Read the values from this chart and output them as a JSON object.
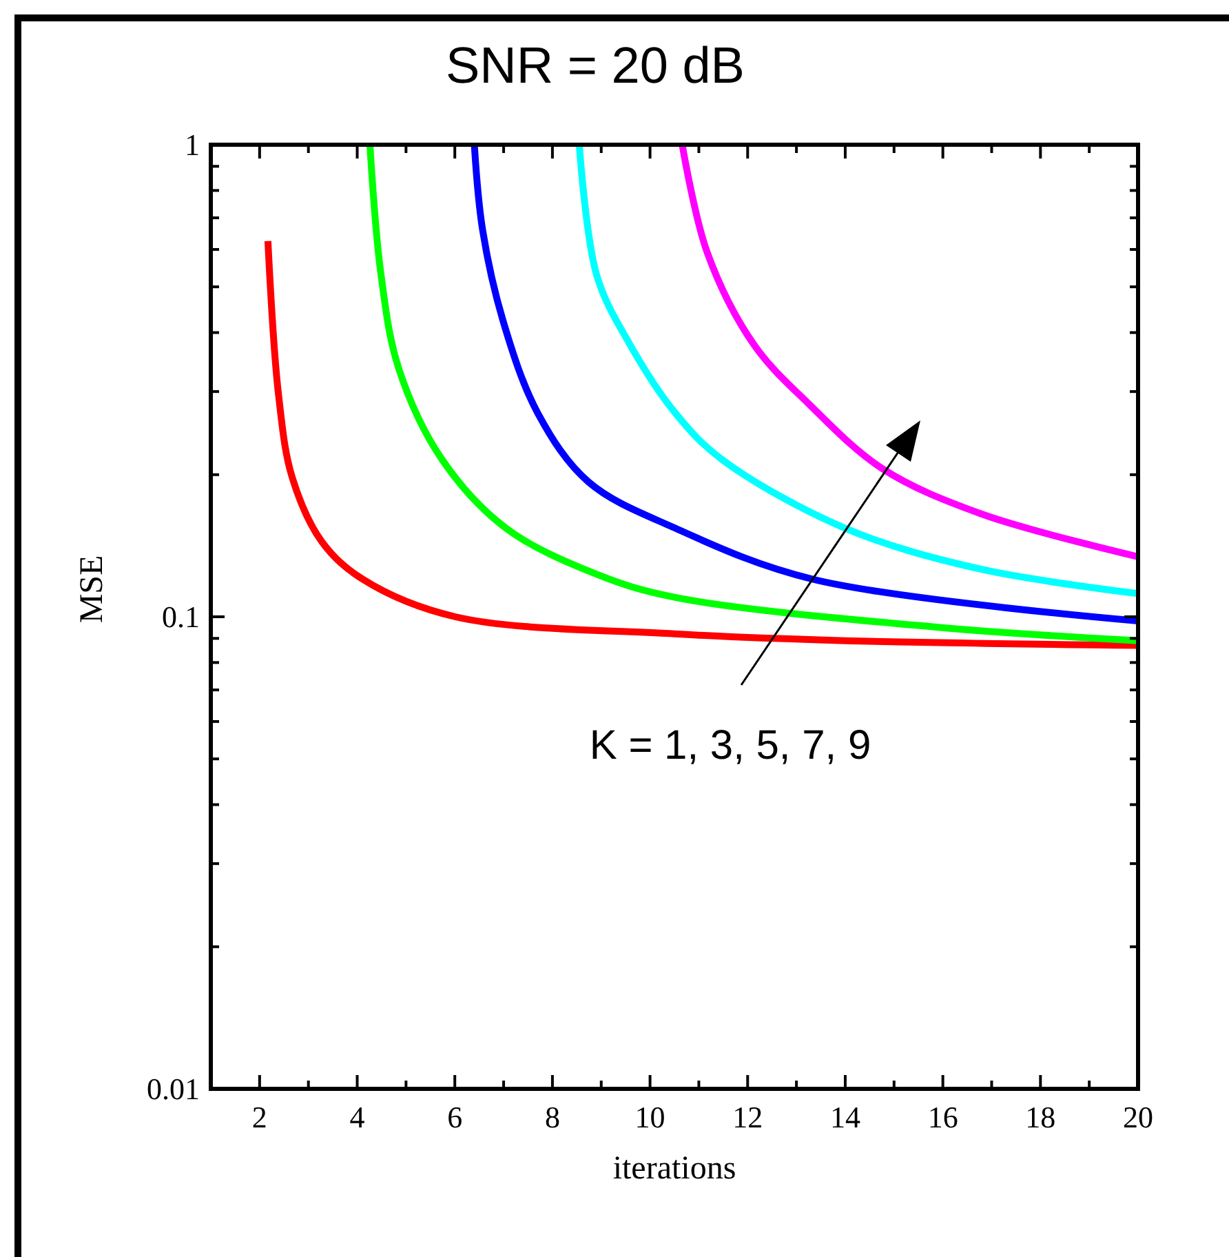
{
  "chart_data": {
    "type": "line",
    "title": "SNR = 20 dB",
    "xlabel": "iterations",
    "ylabel": "MSE",
    "log": "y",
    "grid": false,
    "xlim": [
      1,
      20
    ],
    "xticks": [
      2,
      {
        "value": 3,
        "label": null
      },
      4,
      {
        "value": 5,
        "label": null
      },
      6,
      {
        "value": 7,
        "label": null
      },
      8,
      {
        "value": 9,
        "label": null
      },
      10,
      {
        "value": 11,
        "label": null
      },
      12,
      {
        "value": 13,
        "label": null
      },
      14,
      {
        "value": 15,
        "label": null
      },
      16,
      {
        "value": 17,
        "label": null
      },
      18,
      {
        "value": 19,
        "label": null
      },
      20
    ],
    "ylim": [
      0.01,
      1
    ],
    "yticks": [
      0.01,
      {
        "value": 0.02,
        "label": null
      },
      {
        "value": 0.03,
        "label": null
      },
      {
        "value": 0.04,
        "label": null
      },
      {
        "value": 0.05,
        "label": null
      },
      {
        "value": 0.06,
        "label": null
      },
      {
        "value": 0.07,
        "label": null
      },
      {
        "value": 0.08,
        "label": null
      },
      {
        "value": 0.09,
        "label": null
      },
      0.1,
      {
        "value": 0.2,
        "label": null
      },
      {
        "value": 0.3,
        "label": null
      },
      {
        "value": 0.4,
        "label": null
      },
      {
        "value": 0.5,
        "label": null
      },
      {
        "value": 0.6,
        "label": null
      },
      {
        "value": 0.7,
        "label": null
      },
      {
        "value": 0.8,
        "label": null
      },
      {
        "value": 0.9,
        "label": null
      },
      1
    ],
    "series": [
      {
        "color": "#ff0000",
        "x": [
          2.17,
          2.39,
          2.67,
          3.28,
          4.12,
          6.01,
          10.5,
          14,
          20
        ],
        "values": [
          0.625,
          0.294,
          0.197,
          0.144,
          0.12,
          0.1,
          0.092,
          0.089,
          0.087
        ]
      },
      {
        "color": "#00ff00",
        "x": [
          4.26,
          4.49,
          4.85,
          5.73,
          7.05,
          8.91,
          10.5,
          15.9,
          20
        ],
        "values": [
          1,
          0.528,
          0.336,
          0.216,
          0.154,
          0.123,
          0.11,
          0.095,
          0.089
        ]
      },
      {
        "color": "#0000ff",
        "x": [
          6.4,
          6.57,
          6.99,
          7.7,
          8.74,
          10.52,
          13.35,
          20
        ],
        "values": [
          1,
          0.659,
          0.423,
          0.27,
          0.193,
          0.154,
          0.12,
          0.098
        ]
      },
      {
        "color": "#00ffff",
        "x": [
          8.55,
          8.91,
          9.59,
          10.52,
          11.46,
          14,
          16.8,
          20
        ],
        "values": [
          1,
          0.528,
          0.377,
          0.27,
          0.216,
          0.154,
          0.126,
          0.112
        ]
      },
      {
        "color": "#ff00ff",
        "x": [
          10.66,
          11.17,
          12.13,
          13.26,
          14.76,
          16.8,
          20
        ],
        "values": [
          1,
          0.592,
          0.377,
          0.282,
          0.206,
          0.165,
          0.134
        ]
      }
    ],
    "annotations": [
      "K = 1, 3, 5, 7, 9"
    ]
  }
}
